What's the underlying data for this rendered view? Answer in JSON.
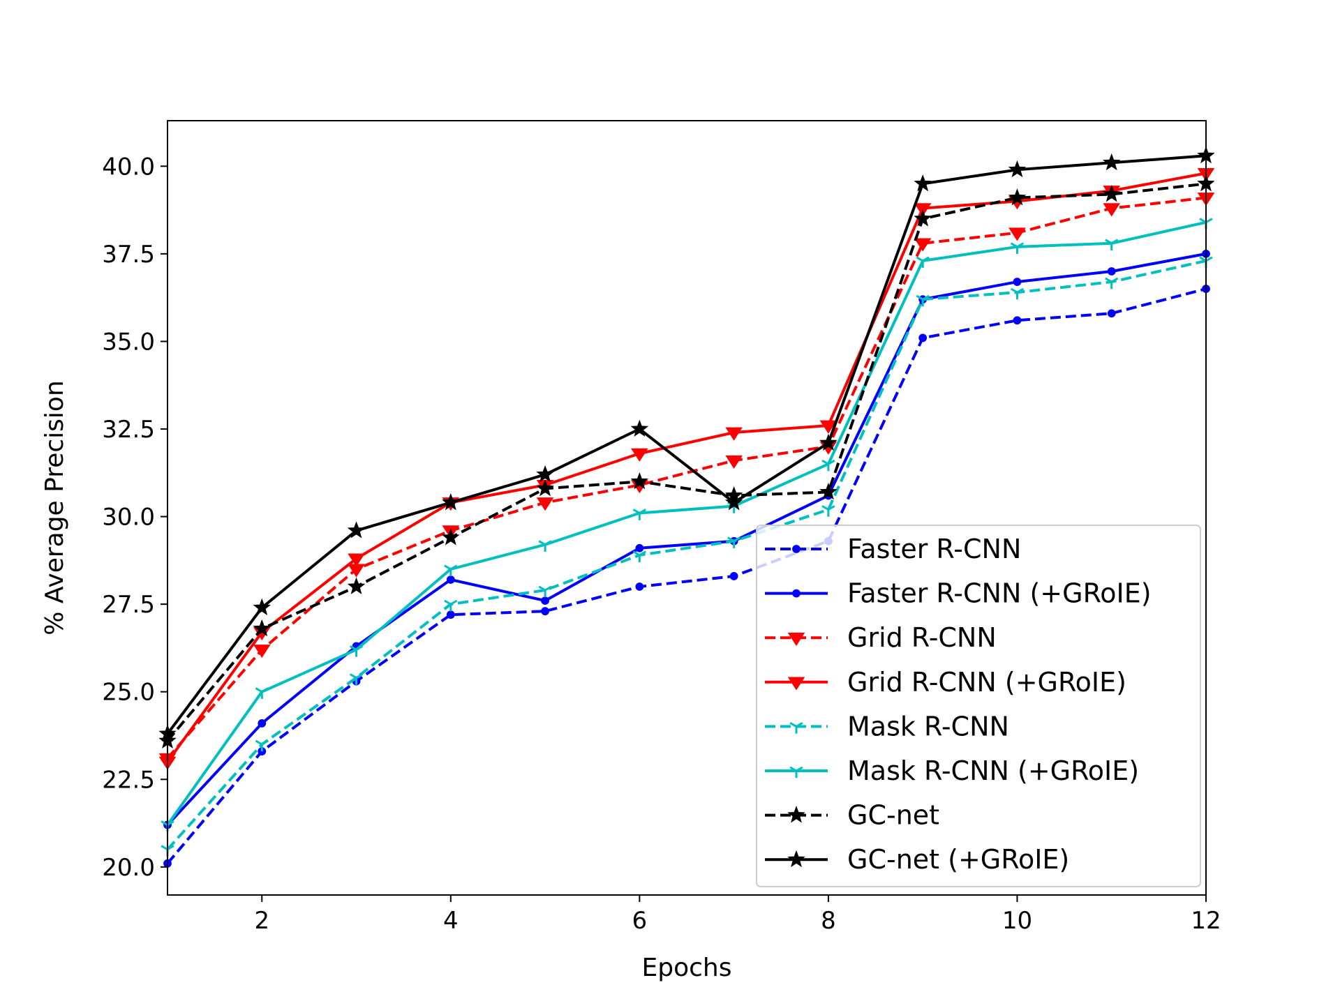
{
  "chart_data": {
    "type": "line",
    "title": "",
    "xlabel": "Epochs",
    "ylabel": "% Average Precision",
    "xlim": [
      1,
      12
    ],
    "ylim": [
      19.2,
      41.3
    ],
    "x_ticks": [
      2,
      4,
      6,
      8,
      10,
      12
    ],
    "y_ticks": [
      20.0,
      22.5,
      25.0,
      27.5,
      30.0,
      32.5,
      35.0,
      37.5,
      40.0
    ],
    "y_tick_labels": [
      "20.0",
      "22.5",
      "25.0",
      "27.5",
      "30.0",
      "32.5",
      "35.0",
      "37.5",
      "40.0"
    ],
    "x_tick_labels": [
      "2",
      "4",
      "6",
      "8",
      "10",
      "12"
    ],
    "grid": false,
    "legend_position": "lower-right",
    "x": [
      1,
      2,
      3,
      4,
      5,
      6,
      7,
      8,
      9,
      10,
      11,
      12
    ],
    "series": [
      {
        "name": "Faster R-CNN",
        "color": "#0000ff",
        "dash": "dashed",
        "marker": "circle",
        "values": [
          20.1,
          23.3,
          25.3,
          27.2,
          27.3,
          28.0,
          28.3,
          29.3,
          35.1,
          35.6,
          35.8,
          36.5
        ]
      },
      {
        "name": "Faster R-CNN (+GRoIE)",
        "color": "#0000ff",
        "dash": "solid",
        "marker": "circle",
        "values": [
          21.2,
          24.1,
          26.3,
          28.2,
          27.6,
          29.1,
          29.3,
          30.6,
          36.2,
          36.7,
          37.0,
          37.5
        ]
      },
      {
        "name": "Grid R-CNN",
        "color": "#ff0000",
        "dash": "dashed",
        "marker": "triangle-down",
        "values": [
          23.1,
          26.2,
          28.5,
          29.6,
          30.4,
          30.9,
          31.6,
          32.0,
          37.8,
          38.1,
          38.8,
          39.1
        ]
      },
      {
        "name": "Grid R-CNN (+GRoIE)",
        "color": "#ff0000",
        "dash": "solid",
        "marker": "triangle-down",
        "values": [
          23.0,
          26.7,
          28.8,
          30.4,
          30.9,
          31.8,
          32.4,
          32.6,
          38.8,
          39.0,
          39.3,
          39.8
        ]
      },
      {
        "name": "Mask R-CNN",
        "color": "#00bfbf",
        "dash": "dashed",
        "marker": "tri-down",
        "values": [
          20.5,
          23.5,
          25.4,
          27.5,
          27.9,
          28.9,
          29.3,
          30.2,
          36.2,
          36.4,
          36.7,
          37.3
        ]
      },
      {
        "name": "Mask R-CNN (+GRoIE)",
        "color": "#00bfbf",
        "dash": "solid",
        "marker": "tri-down",
        "values": [
          21.2,
          25.0,
          26.2,
          28.5,
          29.2,
          30.1,
          30.3,
          31.5,
          37.3,
          37.7,
          37.8,
          38.4
        ]
      },
      {
        "name": "GC-net",
        "color": "#000000",
        "dash": "dashed",
        "marker": "star",
        "values": [
          23.6,
          26.8,
          28.0,
          29.4,
          30.8,
          31.0,
          30.6,
          30.7,
          38.5,
          39.1,
          39.2,
          39.5
        ]
      },
      {
        "name": "GC-net (+GRoIE)",
        "color": "#000000",
        "dash": "solid",
        "marker": "star",
        "values": [
          23.8,
          27.4,
          29.6,
          30.4,
          31.2,
          32.5,
          30.4,
          32.1,
          39.5,
          39.9,
          40.1,
          40.3
        ]
      }
    ]
  }
}
